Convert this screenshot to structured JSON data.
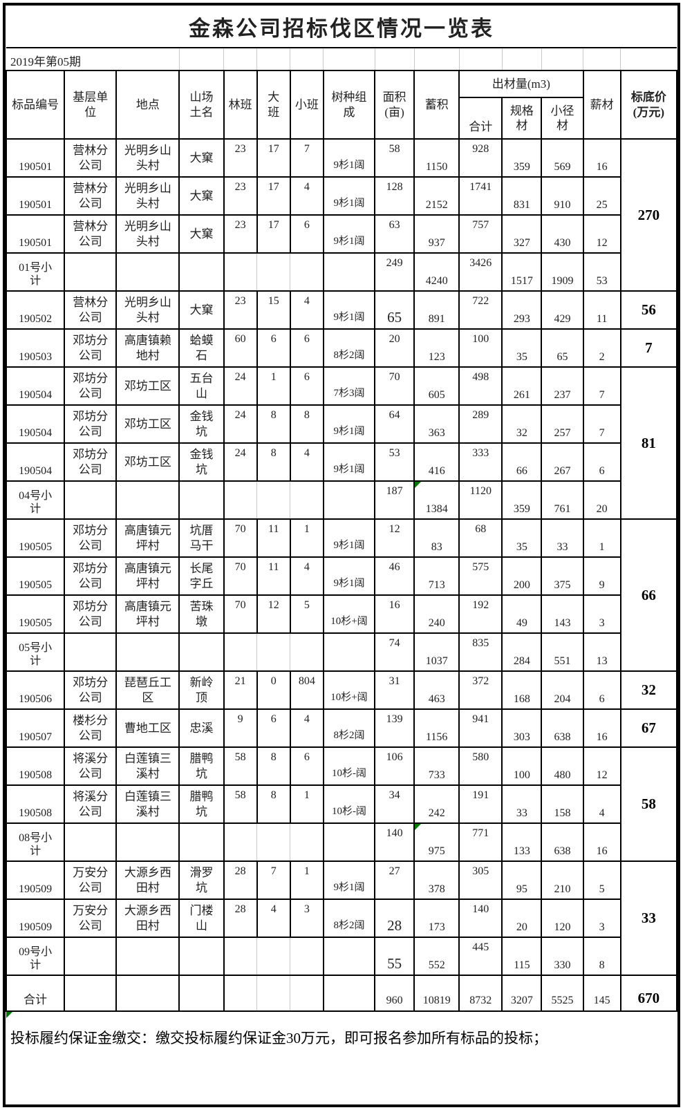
{
  "title": "金森公司招标伐区情况一览表",
  "period": "2019年第05期",
  "output_group_header": "出材量(m3)",
  "columns": [
    "标品编号",
    "基层单位",
    "地点",
    "山场土名",
    "林班",
    "大班",
    "小班",
    "树种组成",
    "面积(亩)",
    "蓄积",
    "合计",
    "规格材",
    "小径材",
    "薪材",
    "标底价(万元)"
  ],
  "rows": [
    {
      "type": "data",
      "cells": [
        "190501",
        "营林分公司",
        "光明乡山头村",
        "大窠",
        "23",
        "17",
        "7",
        "9杉1阔",
        "58",
        "1150",
        "928",
        "359",
        "569",
        "16"
      ]
    },
    {
      "type": "data",
      "cells": [
        "190501",
        "营林分公司",
        "光明乡山头村",
        "大窠",
        "23",
        "17",
        "4",
        "9杉1阔",
        "128",
        "2152",
        "1741",
        "831",
        "910",
        "25"
      ]
    },
    {
      "type": "data",
      "cells": [
        "190501",
        "营林分公司",
        "光明乡山头村",
        "大窠",
        "23",
        "17",
        "6",
        "9杉1阔",
        "63",
        "937",
        "757",
        "327",
        "430",
        "12"
      ]
    },
    {
      "type": "subtotal",
      "cells": [
        "01号小计",
        "",
        "",
        "",
        "",
        "",
        "",
        "",
        "249",
        "4240",
        "3426",
        "1517",
        "1909",
        "53"
      ]
    },
    {
      "type": "data",
      "cells": [
        "190502",
        "营林分公司",
        "光明乡山头村",
        "大窠",
        "23",
        "15",
        "4",
        "9杉1阔",
        {
          "v": "65",
          "big": true
        },
        "891",
        "722",
        "293",
        "429",
        "11"
      ]
    },
    {
      "type": "data",
      "cells": [
        "190503",
        "邓坊分公司",
        "高唐镇赖地村",
        "蛤蟆石",
        "60",
        "6",
        "6",
        "8杉2阔",
        "20",
        "123",
        "100",
        "35",
        "65",
        "2"
      ]
    },
    {
      "type": "data",
      "cells": [
        "190504",
        "邓坊分公司",
        "邓坊工区",
        "五台山",
        "24",
        "1",
        "6",
        "7杉3阔",
        "70",
        "605",
        "498",
        "261",
        "237",
        "7"
      ]
    },
    {
      "type": "data",
      "cells": [
        "190504",
        "邓坊分公司",
        "邓坊工区",
        "金钱坑",
        "24",
        "8",
        "8",
        "9杉1阔",
        "64",
        "363",
        "289",
        "32",
        "257",
        "7"
      ]
    },
    {
      "type": "data",
      "cells": [
        "190504",
        "邓坊分公司",
        "邓坊工区",
        "金钱坑",
        "24",
        "8",
        "4",
        "9杉1阔",
        "53",
        "416",
        "333",
        "66",
        "267",
        "6"
      ]
    },
    {
      "type": "subtotal",
      "cells": [
        "04号小计",
        "",
        "",
        "",
        "",
        "",
        "",
        "",
        "187",
        {
          "v": "1384",
          "flag": true
        },
        "1120",
        "359",
        "761",
        "20"
      ]
    },
    {
      "type": "data",
      "cells": [
        "190505",
        "邓坊分公司",
        "高唐镇元坪村",
        "坑厝马干",
        "70",
        "11",
        "1",
        "9杉1阔",
        "12",
        "83",
        "68",
        "35",
        "33",
        "1"
      ]
    },
    {
      "type": "data",
      "cells": [
        "190505",
        "邓坊分公司",
        "高唐镇元坪村",
        "长尾字丘",
        "70",
        "11",
        "4",
        "9杉1阔",
        "46",
        "713",
        "575",
        "200",
        "375",
        "9"
      ]
    },
    {
      "type": "data",
      "cells": [
        "190505",
        "邓坊分公司",
        "高唐镇元坪村",
        "苦珠墩",
        "70",
        "12",
        "5",
        "10杉+阔",
        "16",
        "240",
        "192",
        "49",
        "143",
        "3"
      ]
    },
    {
      "type": "subtotal",
      "cells": [
        "05号小计",
        "",
        "",
        "",
        "",
        "",
        "",
        "",
        "74",
        "1037",
        "835",
        "284",
        "551",
        "13"
      ]
    },
    {
      "type": "data",
      "cells": [
        "190506",
        "邓坊分公司",
        "琵琶丘工区",
        "新岭顶",
        "21",
        "0",
        "804",
        "10杉+阔",
        "31",
        "463",
        "372",
        "168",
        "204",
        "6"
      ]
    },
    {
      "type": "data",
      "cells": [
        "190507",
        "楼杉分公司",
        "曹地工区",
        "忠溪",
        "9",
        "6",
        "4",
        "8杉2阔",
        "139",
        "1156",
        "941",
        "303",
        "638",
        "16"
      ]
    },
    {
      "type": "data",
      "cells": [
        "190508",
        "将溪分公司",
        "白莲镇三溪村",
        "腊鸭坑",
        "58",
        "8",
        "6",
        "10杉-阔",
        "106",
        "733",
        "580",
        "100",
        "480",
        "12"
      ]
    },
    {
      "type": "data",
      "cells": [
        "190508",
        "将溪分公司",
        "白莲镇三溪村",
        "腊鸭坑",
        "58",
        "8",
        "1",
        "10杉-阔",
        "34",
        "242",
        "191",
        "33",
        "158",
        "4"
      ]
    },
    {
      "type": "subtotal",
      "cells": [
        "08号小计",
        "",
        "",
        "",
        "",
        "",
        "",
        "",
        "140",
        {
          "v": "975",
          "flag": true
        },
        "771",
        "133",
        "638",
        "16"
      ]
    },
    {
      "type": "data",
      "cells": [
        "190509",
        "万安分公司",
        "大源乡西田村",
        "滑罗坑",
        "28",
        "7",
        "1",
        "9杉1阔",
        "27",
        "378",
        "305",
        "95",
        "210",
        "5"
      ]
    },
    {
      "type": "data",
      "cells": [
        "190509",
        "万安分公司",
        "大源乡西田村",
        "门楼山",
        "28",
        "4",
        "3",
        "8杉2阔",
        {
          "v": "28",
          "big": true
        },
        "173",
        "140",
        "20",
        "120",
        "3"
      ]
    },
    {
      "type": "subtotal",
      "cells": [
        "09号小计",
        "",
        "",
        "",
        "",
        "",
        "",
        "",
        {
          "v": "55",
          "big": true
        },
        "552",
        "445",
        "115",
        "330",
        "8"
      ]
    },
    {
      "type": "total",
      "cells": [
        "合计",
        "",
        "",
        "",
        "",
        "",
        "",
        "",
        "960",
        "10819",
        "8732",
        "3207",
        "5525",
        "145"
      ]
    }
  ],
  "price_groups": [
    {
      "rows": 4,
      "price": "270"
    },
    {
      "rows": 1,
      "price": "56"
    },
    {
      "rows": 1,
      "price": "7"
    },
    {
      "rows": 4,
      "price": "81"
    },
    {
      "rows": 4,
      "price": "66"
    },
    {
      "rows": 1,
      "price": "32"
    },
    {
      "rows": 1,
      "price": "67"
    },
    {
      "rows": 3,
      "price": "58"
    },
    {
      "rows": 3,
      "price": "33"
    },
    {
      "rows": 1,
      "price": "670"
    }
  ],
  "footer_note": "投标履约保证金缴交：缴交投标履约保证金30万元，即可报名参加所有标品的投标；",
  "colors": {
    "border": "#000000",
    "grid_light": "#c9c9c9",
    "flag_green": "#007a00"
  }
}
